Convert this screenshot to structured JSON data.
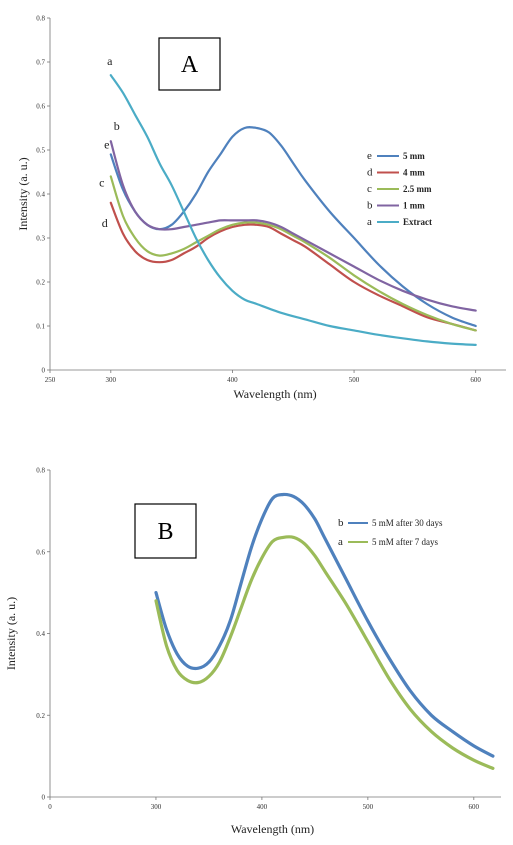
{
  "chart_data": [
    {
      "type": "line",
      "panel_label": "A",
      "xlabel": "Wavelength (nm)",
      "ylabel": "Intensity (a. u.)",
      "xlim": [
        250,
        620
      ],
      "ylim": [
        0,
        0.8
      ],
      "xticks": [
        "250",
        "300",
        "400",
        "500",
        "600"
      ],
      "yticks": [
        "0",
        "0.1",
        "0.2",
        "0.3",
        "0.4",
        "0.5",
        "0.6",
        "0.7",
        "0.8"
      ],
      "grid": false,
      "legend": "top-right",
      "series": [
        {
          "name": "5 mm",
          "letter": "e",
          "color": "#4f81bd",
          "x": [
            300,
            310,
            320,
            330,
            340,
            350,
            360,
            370,
            380,
            390,
            400,
            410,
            420,
            430,
            440,
            450,
            460,
            480,
            500,
            520,
            540,
            560,
            580,
            600
          ],
          "y": [
            0.49,
            0.41,
            0.36,
            0.33,
            0.32,
            0.33,
            0.36,
            0.4,
            0.45,
            0.49,
            0.53,
            0.55,
            0.55,
            0.54,
            0.51,
            0.47,
            0.43,
            0.36,
            0.3,
            0.24,
            0.19,
            0.15,
            0.12,
            0.1
          ]
        },
        {
          "name": "4 mm",
          "letter": "d",
          "color": "#c0504d",
          "x": [
            300,
            310,
            320,
            330,
            340,
            350,
            360,
            370,
            380,
            390,
            400,
            410,
            420,
            430,
            440,
            450,
            460,
            480,
            500,
            520,
            540,
            560,
            580,
            600
          ],
          "y": [
            0.38,
            0.31,
            0.27,
            0.25,
            0.245,
            0.25,
            0.265,
            0.28,
            0.3,
            0.315,
            0.325,
            0.33,
            0.33,
            0.325,
            0.31,
            0.295,
            0.28,
            0.24,
            0.2,
            0.17,
            0.145,
            0.12,
            0.105,
            0.09
          ]
        },
        {
          "name": "2.5 mm",
          "letter": "c",
          "color": "#9bbb59",
          "x": [
            300,
            310,
            320,
            330,
            340,
            350,
            360,
            370,
            380,
            390,
            400,
            410,
            420,
            430,
            440,
            450,
            460,
            480,
            500,
            520,
            540,
            560,
            580,
            600
          ],
          "y": [
            0.44,
            0.35,
            0.3,
            0.27,
            0.26,
            0.265,
            0.275,
            0.29,
            0.305,
            0.32,
            0.33,
            0.335,
            0.335,
            0.33,
            0.32,
            0.305,
            0.29,
            0.255,
            0.215,
            0.18,
            0.15,
            0.125,
            0.105,
            0.09
          ]
        },
        {
          "name": "1 mm",
          "letter": "b",
          "color": "#8064a2",
          "x": [
            300,
            310,
            320,
            330,
            340,
            350,
            360,
            370,
            380,
            390,
            400,
            410,
            420,
            430,
            440,
            450,
            460,
            480,
            500,
            520,
            540,
            560,
            580,
            600
          ],
          "y": [
            0.52,
            0.42,
            0.36,
            0.33,
            0.32,
            0.32,
            0.325,
            0.33,
            0.335,
            0.34,
            0.34,
            0.34,
            0.34,
            0.335,
            0.325,
            0.31,
            0.295,
            0.265,
            0.235,
            0.205,
            0.18,
            0.16,
            0.145,
            0.135
          ]
        },
        {
          "name": "Extract",
          "letter": "a",
          "color": "#4bacc6",
          "x": [
            300,
            310,
            320,
            330,
            340,
            350,
            360,
            370,
            380,
            390,
            400,
            410,
            420,
            440,
            460,
            480,
            500,
            520,
            540,
            560,
            580,
            600
          ],
          "y": [
            0.67,
            0.63,
            0.58,
            0.53,
            0.47,
            0.42,
            0.36,
            0.3,
            0.25,
            0.21,
            0.18,
            0.16,
            0.15,
            0.13,
            0.115,
            0.1,
            0.09,
            0.08,
            0.072,
            0.065,
            0.06,
            0.057
          ]
        }
      ]
    },
    {
      "type": "line",
      "panel_label": "B",
      "xlabel": "Wavelength (nm)",
      "ylabel": "Intensity (a. u.)",
      "xlim": [
        200,
        620
      ],
      "ylim": [
        0,
        0.8
      ],
      "xticks": [
        "0",
        "300",
        "400",
        "500",
        "600"
      ],
      "yticks": [
        "0",
        "0.2",
        "0.4",
        "0.6",
        "0.8"
      ],
      "grid": false,
      "legend": "top-right",
      "series": [
        {
          "name": "5 mM after 30 days",
          "letter": "b",
          "color": "#4f81bd",
          "x": [
            300,
            310,
            320,
            330,
            340,
            350,
            360,
            370,
            380,
            390,
            400,
            410,
            420,
            430,
            440,
            450,
            460,
            480,
            500,
            520,
            540,
            560,
            580,
            600,
            618
          ],
          "y": [
            0.5,
            0.41,
            0.35,
            0.32,
            0.315,
            0.33,
            0.37,
            0.43,
            0.52,
            0.61,
            0.68,
            0.73,
            0.74,
            0.735,
            0.715,
            0.68,
            0.63,
            0.53,
            0.43,
            0.34,
            0.26,
            0.2,
            0.16,
            0.125,
            0.1
          ]
        },
        {
          "name": "5 mM after 7 days",
          "letter": "a",
          "color": "#9bbb59",
          "x": [
            300,
            310,
            320,
            330,
            340,
            350,
            360,
            370,
            380,
            390,
            400,
            410,
            420,
            430,
            440,
            450,
            460,
            480,
            500,
            520,
            540,
            560,
            580,
            600,
            618
          ],
          "y": [
            0.48,
            0.37,
            0.31,
            0.285,
            0.28,
            0.295,
            0.33,
            0.39,
            0.46,
            0.53,
            0.585,
            0.625,
            0.635,
            0.635,
            0.62,
            0.59,
            0.55,
            0.47,
            0.38,
            0.29,
            0.215,
            0.16,
            0.12,
            0.09,
            0.07
          ]
        }
      ]
    }
  ]
}
